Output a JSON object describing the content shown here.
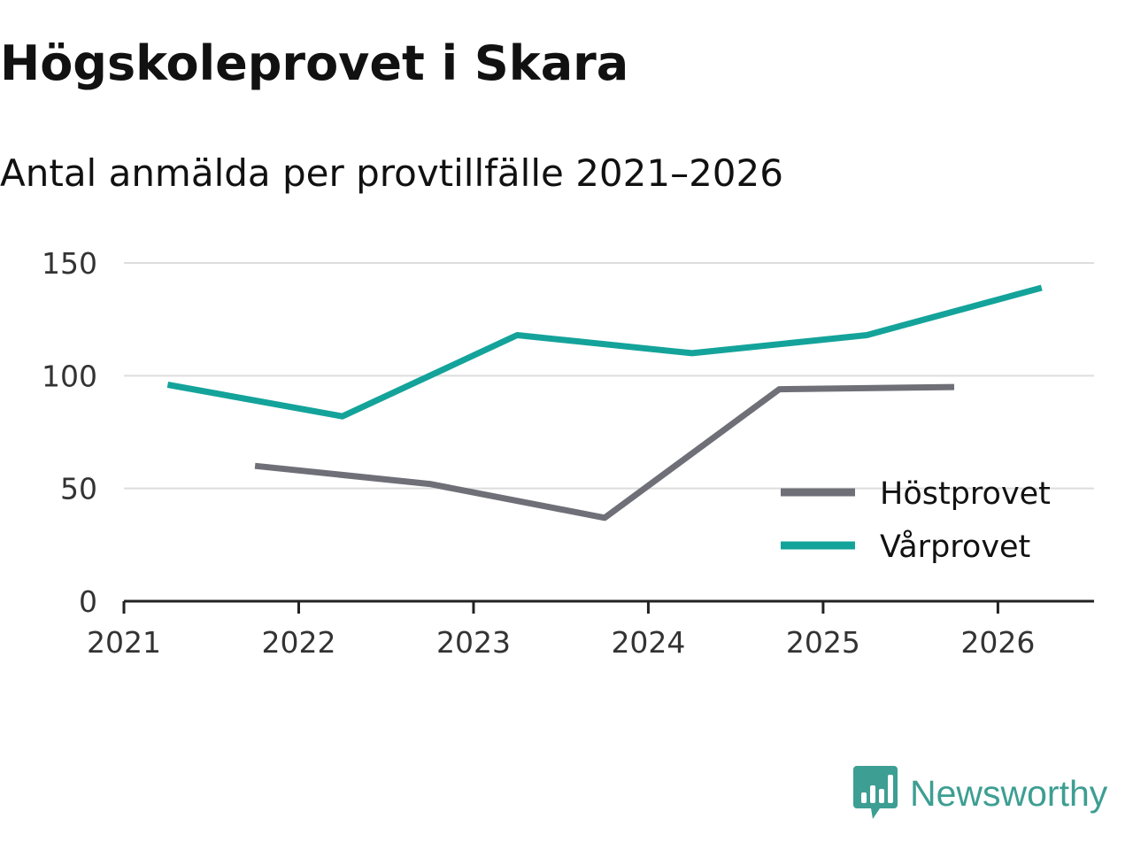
{
  "title": "Högskoleprovet i Skara",
  "subtitle": "Antal anmälda per provtillfälle 2021–2026",
  "brand": {
    "name": "Newsworthy",
    "logo_icon": "bar-chart-speech-bubble-icon",
    "color": "#3d9e93"
  },
  "chart_data": {
    "type": "line",
    "title": "Högskoleprovet i Skara",
    "subtitle": "Antal anmälda per provtillfälle 2021–2026",
    "xlabel": "",
    "ylabel": "",
    "x_ticks": [
      "2021",
      "2022",
      "2023",
      "2024",
      "2025",
      "2026"
    ],
    "y_ticks": [
      "0",
      "50",
      "100",
      "150"
    ],
    "xlim": [
      2021,
      2026.55
    ],
    "ylim": [
      0,
      150
    ],
    "grid": true,
    "legend_position": "bottom-right",
    "series": [
      {
        "name": "Höstprovet",
        "color": "#6f6f78",
        "x": [
          2021.75,
          2022.75,
          2023.75,
          2024.75,
          2025.75
        ],
        "y": [
          60,
          52,
          37,
          94,
          95
        ]
      },
      {
        "name": "Vårprovet",
        "color": "#14a39a",
        "x": [
          2021.25,
          2022.25,
          2023.25,
          2024.25,
          2025.25,
          2026.25
        ],
        "y": [
          96,
          82,
          118,
          110,
          118,
          139
        ]
      }
    ]
  }
}
